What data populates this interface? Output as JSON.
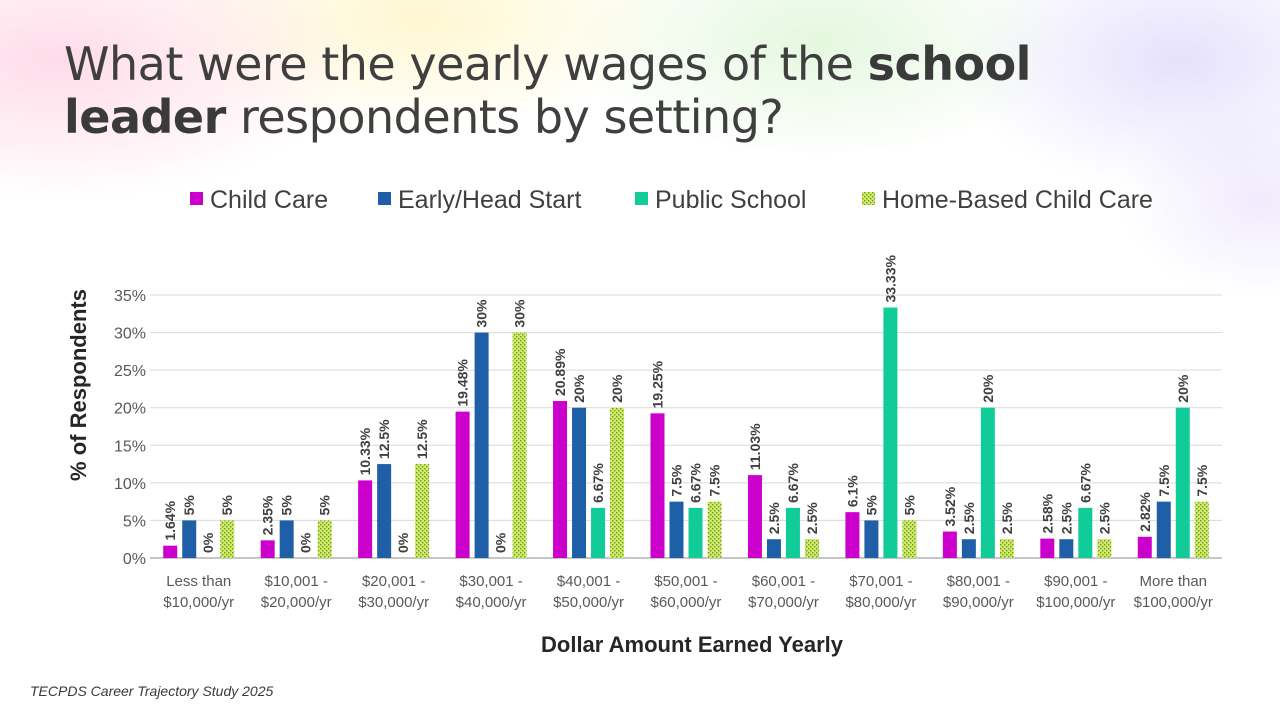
{
  "slide": {
    "title_part1": "What were the yearly wages of the ",
    "title_bold1": "school",
    "title_bold2": "leader",
    "title_part2": " respondents by setting?",
    "footer": "TECPDS Career Trajectory Study 2025"
  },
  "chart_data": {
    "type": "bar",
    "xlabel": "Dollar Amount Earned Yearly",
    "ylabel": "% of Respondents",
    "ylim": [
      0,
      35
    ],
    "yticks": [
      "0%",
      "5%",
      "10%",
      "15%",
      "20%",
      "25%",
      "30%",
      "35%"
    ],
    "ytick_values": [
      0,
      5,
      10,
      15,
      20,
      25,
      30,
      35
    ],
    "grid": true,
    "legend_position": "top",
    "categories": [
      [
        "Less than",
        "$10,000/yr"
      ],
      [
        "$10,001 -",
        "$20,000/yr"
      ],
      [
        "$20,001 -",
        "$30,000/yr"
      ],
      [
        "$30,001 -",
        "$40,000/yr"
      ],
      [
        "$40,001 -",
        "$50,000/yr"
      ],
      [
        "$50,001 -",
        "$60,000/yr"
      ],
      [
        "$60,001 -",
        "$70,000/yr"
      ],
      [
        "$70,001 -",
        "$80,000/yr"
      ],
      [
        "$80,001 -",
        "$90,000/yr"
      ],
      [
        "$90,001 -",
        "$100,000/yr"
      ],
      [
        "More than",
        "$100,000/yr"
      ]
    ],
    "series": [
      {
        "name": "Child Care",
        "color": "#CC00CC",
        "values": [
          1.64,
          2.35,
          10.33,
          19.48,
          20.89,
          19.25,
          11.03,
          6.1,
          3.52,
          2.58,
          2.82
        ],
        "labels": [
          "1.64%",
          "2.35%",
          "10.33%",
          "19.48%",
          "20.89%",
          "19.25%",
          "11.03%",
          "6.1%",
          "3.52%",
          "2.58%",
          "2.82%"
        ]
      },
      {
        "name": "Early/Head Start",
        "color": "#1F5FA8",
        "values": [
          5,
          5,
          12.5,
          30,
          20,
          7.5,
          2.5,
          5,
          2.5,
          2.5,
          7.5
        ],
        "labels": [
          "5%",
          "5%",
          "12.5%",
          "30%",
          "20%",
          "7.5%",
          "2.5%",
          "5%",
          "2.5%",
          "2.5%",
          "7.5%"
        ]
      },
      {
        "name": "Public School",
        "color": "#11CC99",
        "values": [
          0,
          0,
          0,
          0,
          6.67,
          6.67,
          6.67,
          33.33,
          20,
          6.67,
          20
        ],
        "labels": [
          "0%",
          "0%",
          "0%",
          "0%",
          "6.67%",
          "6.67%",
          "6.67%",
          "33.33%",
          "20%",
          "6.67%",
          "20%"
        ]
      },
      {
        "name": "Home-Based Child Care",
        "color": "#CCEE66",
        "pattern": "dotted",
        "values": [
          5,
          5,
          12.5,
          30,
          20,
          7.5,
          2.5,
          5,
          2.5,
          2.5,
          7.5
        ],
        "labels": [
          "5%",
          "5%",
          "12.5%",
          "30%",
          "20%",
          "7.5%",
          "2.5%",
          "5%",
          "2.5%",
          "2.5%",
          "7.5%"
        ]
      }
    ]
  }
}
